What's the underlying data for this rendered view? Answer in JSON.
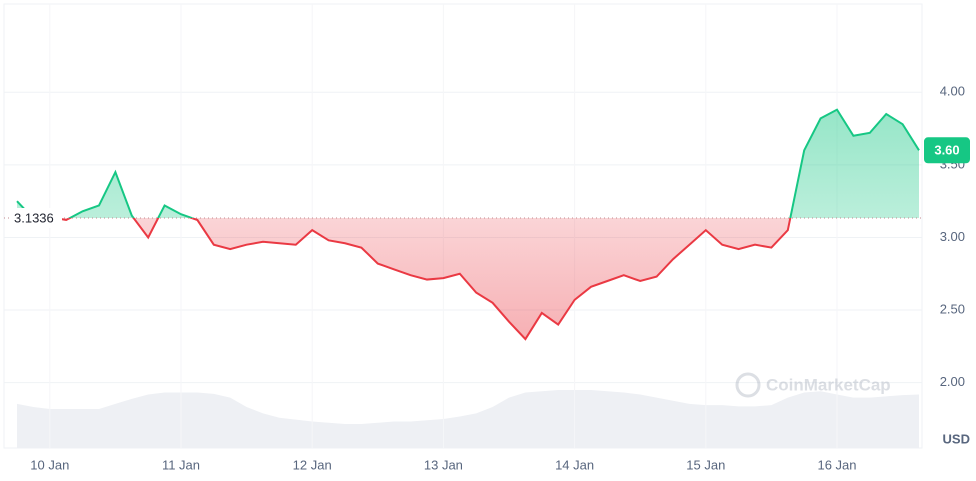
{
  "chart_data": {
    "type": "line",
    "categories": [
      null,
      null,
      "10 Jan",
      null,
      null,
      null,
      null,
      null,
      null,
      null,
      "11 Jan",
      null,
      null,
      null,
      null,
      null,
      null,
      null,
      "12 Jan",
      null,
      null,
      null,
      null,
      null,
      null,
      null,
      "13 Jan",
      null,
      null,
      null,
      null,
      null,
      null,
      null,
      "14 Jan",
      null,
      null,
      null,
      null,
      null,
      null,
      null,
      "15 Jan",
      null,
      null,
      null,
      null,
      null,
      null,
      null,
      "16 Jan",
      null,
      null,
      null,
      null,
      null
    ],
    "values": [
      3.25,
      3.13,
      3.14,
      3.12,
      3.18,
      3.22,
      3.45,
      3.15,
      3.0,
      3.22,
      3.16,
      3.12,
      2.95,
      2.92,
      2.95,
      2.97,
      2.96,
      2.95,
      3.05,
      2.98,
      2.96,
      2.93,
      2.82,
      2.78,
      2.74,
      2.71,
      2.72,
      2.75,
      2.62,
      2.55,
      2.42,
      2.3,
      2.48,
      2.4,
      2.57,
      2.66,
      2.7,
      2.74,
      2.7,
      2.73,
      2.85,
      2.95,
      3.05,
      2.95,
      2.92,
      2.95,
      2.93,
      3.05,
      3.6,
      3.82,
      3.88,
      3.7,
      3.72,
      3.85,
      3.78,
      3.6
    ],
    "volume": [
      70,
      65,
      62,
      62,
      62,
      62,
      70,
      78,
      85,
      88,
      88,
      88,
      86,
      80,
      65,
      55,
      48,
      45,
      42,
      40,
      38,
      38,
      40,
      42,
      42,
      44,
      46,
      50,
      55,
      65,
      80,
      88,
      90,
      92,
      92,
      92,
      90,
      88,
      85,
      80,
      75,
      70,
      68,
      68,
      66,
      66,
      68,
      80,
      88,
      90,
      85,
      80,
      80,
      82,
      84,
      85
    ],
    "baseline": 3.1336,
    "price_tag": {
      "value": 3.6,
      "label": "3.60"
    },
    "up_color": "#16c784",
    "down_color": "#ea3943",
    "ylim": [
      1.55,
      4.58
    ],
    "yticks": [
      {
        "value": 2,
        "label": "2.00"
      },
      {
        "value": 2.5,
        "label": "2.50"
      },
      {
        "value": 3,
        "label": "3.00"
      },
      {
        "value": 3.5,
        "label": "3.50"
      },
      {
        "value": 4,
        "label": "4.00"
      }
    ],
    "y_unit": "USD",
    "watermark": "CoinMarketCap",
    "grid": true
  }
}
